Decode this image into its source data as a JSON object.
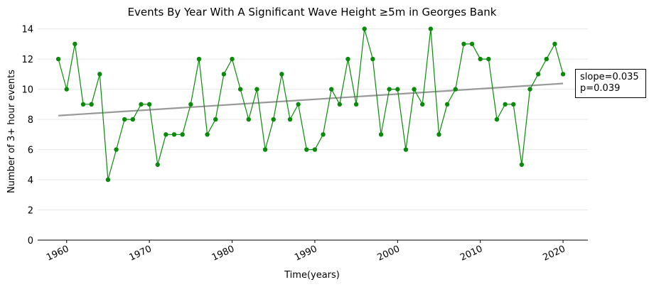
{
  "chart_data": {
    "type": "line",
    "title": "Events By Year With A Significant Wave Height ≥5m in Georges Bank",
    "xlabel": "Time(years)",
    "ylabel": "Number of 3+ hour events",
    "xlim": [
      1956.5,
      2023.0
    ],
    "ylim": [
      0,
      14.5
    ],
    "x_ticks": [
      1960,
      1970,
      1980,
      1990,
      2000,
      2010,
      2020
    ],
    "x_tick_labels": [
      "1960",
      "1970",
      "1980",
      "1990",
      "2000",
      "2010",
      "2020"
    ],
    "y_ticks": [
      0,
      2,
      4,
      6,
      8,
      10,
      12,
      14
    ],
    "y_tick_labels": [
      "0",
      "2",
      "4",
      "6",
      "8",
      "10",
      "12",
      "14"
    ],
    "grid": "horizontal",
    "x": [
      1959,
      1960,
      1961,
      1962,
      1963,
      1964,
      1965,
      1966,
      1967,
      1968,
      1969,
      1970,
      1971,
      1972,
      1973,
      1974,
      1975,
      1976,
      1977,
      1978,
      1979,
      1980,
      1981,
      1982,
      1983,
      1984,
      1985,
      1986,
      1987,
      1988,
      1989,
      1990,
      1991,
      1992,
      1993,
      1994,
      1995,
      1996,
      1997,
      1998,
      1999,
      2000,
      2001,
      2002,
      2003,
      2004,
      2005,
      2006,
      2007,
      2008,
      2009,
      2010,
      2011,
      2012,
      2013,
      2014,
      2015,
      2016,
      2017,
      2018,
      2019,
      2020
    ],
    "series": [
      {
        "values": [
          12,
          10,
          13,
          9,
          9,
          11,
          4,
          6,
          8,
          8,
          9,
          9,
          5,
          7,
          7,
          7,
          9,
          12,
          7,
          8,
          11,
          12,
          10,
          8,
          10,
          6,
          8,
          11,
          8,
          9,
          6,
          6,
          7,
          10,
          9,
          12,
          9,
          14,
          12,
          7,
          10,
          10,
          6,
          10,
          9,
          14,
          7,
          9,
          10,
          13,
          13,
          12,
          12,
          8,
          9,
          9,
          5,
          10,
          11,
          12,
          13,
          11
        ],
        "color": "#0a8a0a"
      }
    ],
    "trend": {
      "x": [
        1959,
        2020
      ],
      "y": [
        8.25,
        10.38
      ],
      "color": "#999999"
    },
    "annotation": {
      "slope": "slope=0.035",
      "p": "p=0.039"
    }
  }
}
